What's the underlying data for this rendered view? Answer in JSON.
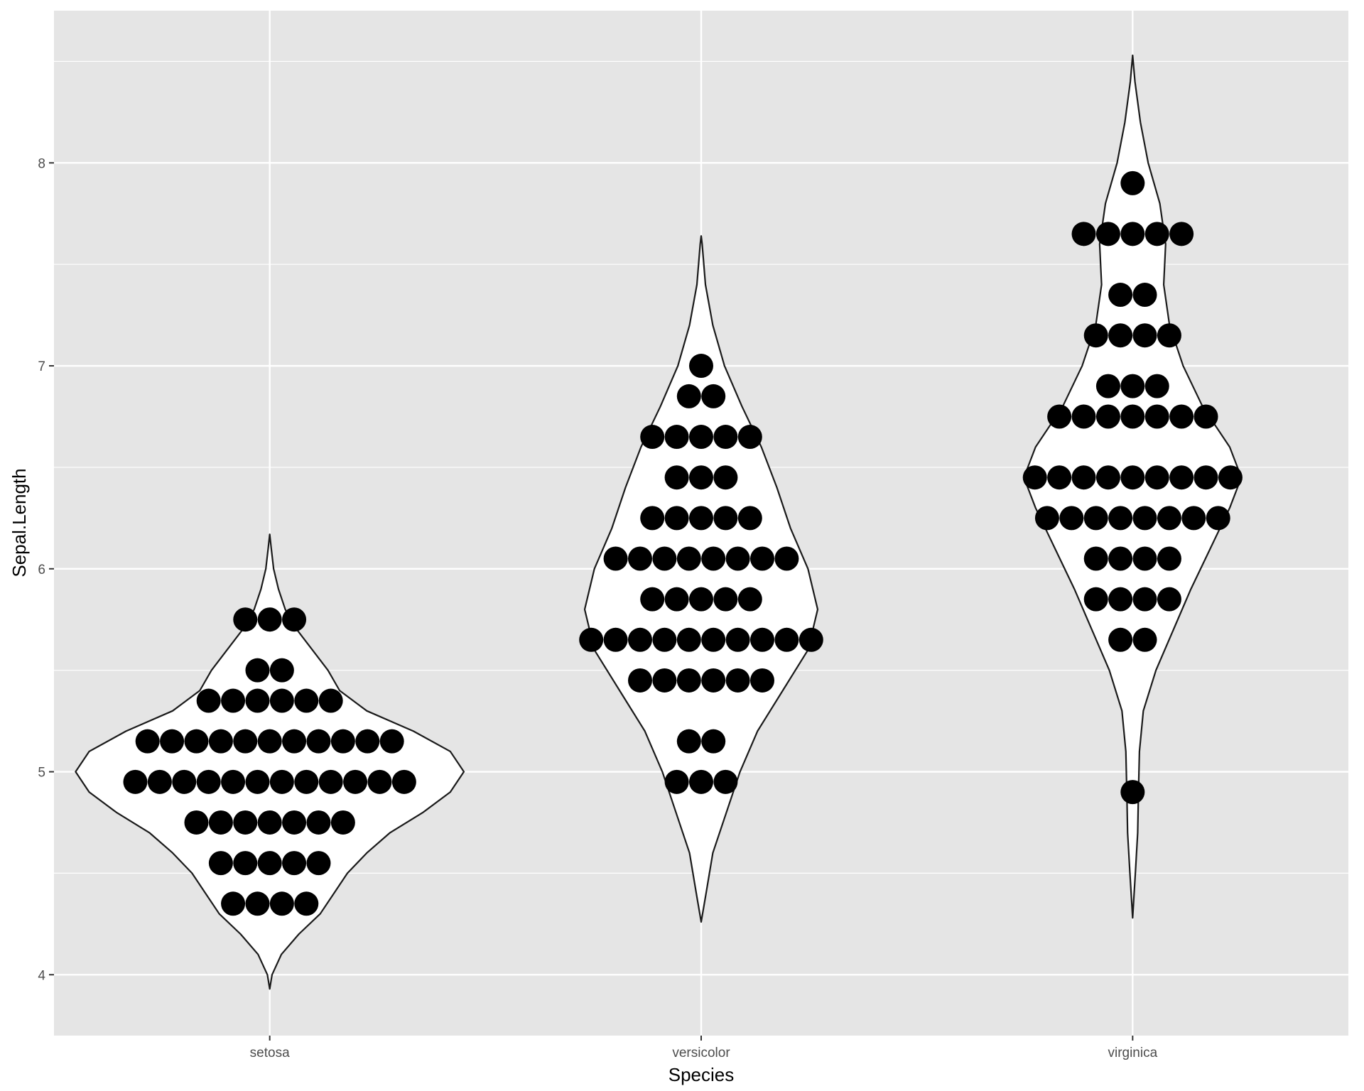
{
  "chart_data": {
    "type": "violin",
    "xlabel": "Species",
    "ylabel": "Sepal.Length",
    "ylim": [
      3.7,
      8.75
    ],
    "y_ticks": [
      4,
      5,
      6,
      7,
      8
    ],
    "categories": [
      "setosa",
      "versicolor",
      "virginica"
    ],
    "grid": true,
    "colors": {
      "panel_background": "#e5e5e5",
      "grid_line": "#ffffff",
      "violin_fill": "#ffffff",
      "violin_outline": "#1a1a1a",
      "dot": "#000000"
    },
    "series": [
      {
        "category": "setosa",
        "range": [
          4.3,
          5.8
        ],
        "density": [
          [
            3.93,
            0.0
          ],
          [
            4.0,
            0.012
          ],
          [
            4.1,
            0.06
          ],
          [
            4.2,
            0.15
          ],
          [
            4.3,
            0.26
          ],
          [
            4.4,
            0.33
          ],
          [
            4.5,
            0.4
          ],
          [
            4.6,
            0.5
          ],
          [
            4.7,
            0.62
          ],
          [
            4.8,
            0.79
          ],
          [
            4.9,
            0.93
          ],
          [
            5.0,
            1.0
          ],
          [
            5.1,
            0.93
          ],
          [
            5.2,
            0.74
          ],
          [
            5.3,
            0.5
          ],
          [
            5.4,
            0.36
          ],
          [
            5.5,
            0.3
          ],
          [
            5.6,
            0.22
          ],
          [
            5.7,
            0.14
          ],
          [
            5.8,
            0.08
          ],
          [
            5.9,
            0.045
          ],
          [
            6.0,
            0.02
          ],
          [
            6.1,
            0.008
          ],
          [
            6.17,
            0.0
          ]
        ],
        "dots": [
          {
            "y": 4.35,
            "count": 4
          },
          {
            "y": 4.55,
            "count": 5
          },
          {
            "y": 4.75,
            "count": 7
          },
          {
            "y": 4.95,
            "count": 12
          },
          {
            "y": 5.15,
            "count": 11
          },
          {
            "y": 5.35,
            "count": 6
          },
          {
            "y": 5.5,
            "count": 2
          },
          {
            "y": 5.75,
            "count": 3
          }
        ]
      },
      {
        "category": "versicolor",
        "range": [
          4.9,
          7.0
        ],
        "density": [
          [
            4.26,
            0.0
          ],
          [
            4.4,
            0.025
          ],
          [
            4.6,
            0.06
          ],
          [
            4.8,
            0.13
          ],
          [
            5.0,
            0.2
          ],
          [
            5.2,
            0.29
          ],
          [
            5.4,
            0.42
          ],
          [
            5.6,
            0.55
          ],
          [
            5.8,
            0.6
          ],
          [
            6.0,
            0.55
          ],
          [
            6.2,
            0.46
          ],
          [
            6.4,
            0.39
          ],
          [
            6.6,
            0.31
          ],
          [
            6.8,
            0.21
          ],
          [
            7.0,
            0.12
          ],
          [
            7.2,
            0.06
          ],
          [
            7.4,
            0.022
          ],
          [
            7.6,
            0.005
          ],
          [
            7.64,
            0.0
          ]
        ],
        "dots": [
          {
            "y": 4.95,
            "count": 3
          },
          {
            "y": 5.15,
            "count": 2
          },
          {
            "y": 5.45,
            "count": 6
          },
          {
            "y": 5.65,
            "count": 10
          },
          {
            "y": 5.85,
            "count": 5
          },
          {
            "y": 6.05,
            "count": 8
          },
          {
            "y": 6.25,
            "count": 5
          },
          {
            "y": 6.45,
            "count": 3
          },
          {
            "y": 6.65,
            "count": 5
          },
          {
            "y": 6.85,
            "count": 2
          },
          {
            "y": 7.0,
            "count": 1
          }
        ]
      },
      {
        "category": "virginica",
        "range": [
          4.9,
          7.9
        ],
        "density": [
          [
            4.28,
            0.0
          ],
          [
            4.5,
            0.014
          ],
          [
            4.7,
            0.026
          ],
          [
            4.9,
            0.03
          ],
          [
            5.1,
            0.035
          ],
          [
            5.3,
            0.055
          ],
          [
            5.5,
            0.12
          ],
          [
            5.7,
            0.21
          ],
          [
            5.9,
            0.3
          ],
          [
            6.1,
            0.4
          ],
          [
            6.3,
            0.5
          ],
          [
            6.45,
            0.56
          ],
          [
            6.6,
            0.5
          ],
          [
            6.8,
            0.36
          ],
          [
            7.0,
            0.26
          ],
          [
            7.2,
            0.19
          ],
          [
            7.4,
            0.16
          ],
          [
            7.6,
            0.17
          ],
          [
            7.8,
            0.14
          ],
          [
            8.0,
            0.08
          ],
          [
            8.2,
            0.04
          ],
          [
            8.4,
            0.012
          ],
          [
            8.53,
            0.0
          ]
        ],
        "dots": [
          {
            "y": 4.9,
            "count": 1
          },
          {
            "y": 5.65,
            "count": 2
          },
          {
            "y": 5.85,
            "count": 4
          },
          {
            "y": 6.05,
            "count": 4
          },
          {
            "y": 6.25,
            "count": 8
          },
          {
            "y": 6.45,
            "count": 9
          },
          {
            "y": 6.75,
            "count": 7
          },
          {
            "y": 6.9,
            "count": 3
          },
          {
            "y": 7.15,
            "count": 4
          },
          {
            "y": 7.35,
            "count": 2
          },
          {
            "y": 7.65,
            "count": 5
          },
          {
            "y": 7.9,
            "count": 1
          }
        ]
      }
    ]
  }
}
